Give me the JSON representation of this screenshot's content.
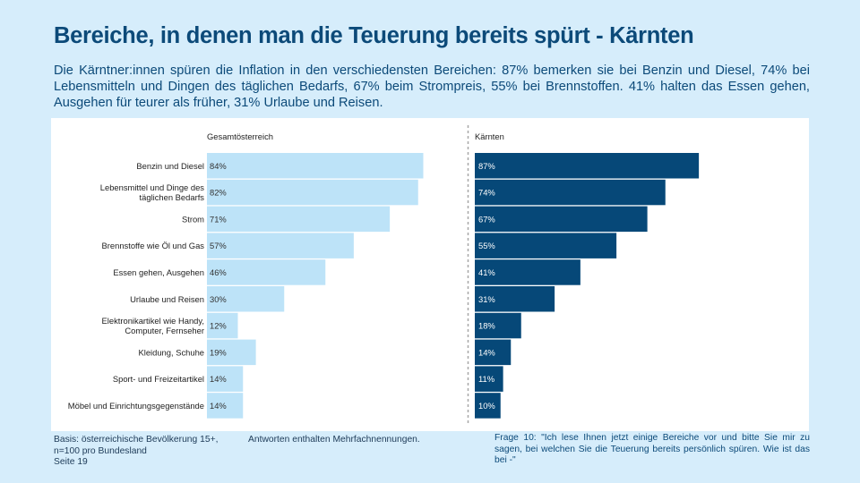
{
  "page": {
    "title": "Bereiche, in denen man die Teuerung bereits spürt - Kärnten",
    "subtitle": "Die Kärntner:innen spüren die Inflation in den verschiedensten Bereichen: 87% bemerken sie bei Benzin und Diesel, 74% bei Lebensmitteln und Dingen des täglichen Bedarfs, 67% beim Strompreis, 55% bei Brennstoffen. 41% halten das Essen gehen, Ausgehen für teurer als früher, 31% Urlaube und Reisen."
  },
  "footer": {
    "basis_line1": "Basis: österreichische Bevölkerung 15+,",
    "basis_line2": "n=100 pro Bundesland",
    "page_number": "Seite 19",
    "multiple_answers_note": "Antworten enthalten Mehrfachnennungen.",
    "question": "Frage 10: \"Ich lese Ihnen jetzt einige Bereiche vor und bitte Sie mir zu sagen, bei welchen Sie die Teuerung bereits persönlich spüren. Wie ist das bei -\""
  },
  "colors": {
    "background": "#d6edfb",
    "title": "#0c4a79",
    "gesamt_bar": "#bde3f8",
    "kaernten_bar": "#064878"
  },
  "chart_data": {
    "type": "bar",
    "orientation": "horizontal",
    "title": "Bereiche, in denen man die Teuerung bereits spürt - Kärnten",
    "xlabel": "",
    "ylabel": "",
    "unit": "%",
    "xlim": [
      0,
      100
    ],
    "grid": false,
    "legend": "none",
    "categories": [
      [
        "Benzin und Diesel"
      ],
      [
        "Lebensmittel und Dinge des",
        "täglichen Bedarfs"
      ],
      [
        "Strom"
      ],
      [
        "Brennstoffe wie Öl und Gas"
      ],
      [
        "Essen gehen, Ausgehen"
      ],
      [
        "Urlaube und Reisen"
      ],
      [
        "Elektronikartikel wie Handy,",
        "Computer, Fernseher"
      ],
      [
        "Kleidung, Schuhe"
      ],
      [
        "Sport- und Freizeitartikel"
      ],
      [
        "Möbel und Einrichtungsgegenstände"
      ]
    ],
    "series": [
      {
        "name": "Gesamtösterreich",
        "values": [
          84,
          82,
          71,
          57,
          46,
          30,
          12,
          19,
          14,
          14
        ]
      },
      {
        "name": "Kärnten",
        "values": [
          87,
          74,
          67,
          55,
          41,
          31,
          18,
          14,
          11,
          10
        ]
      }
    ]
  }
}
